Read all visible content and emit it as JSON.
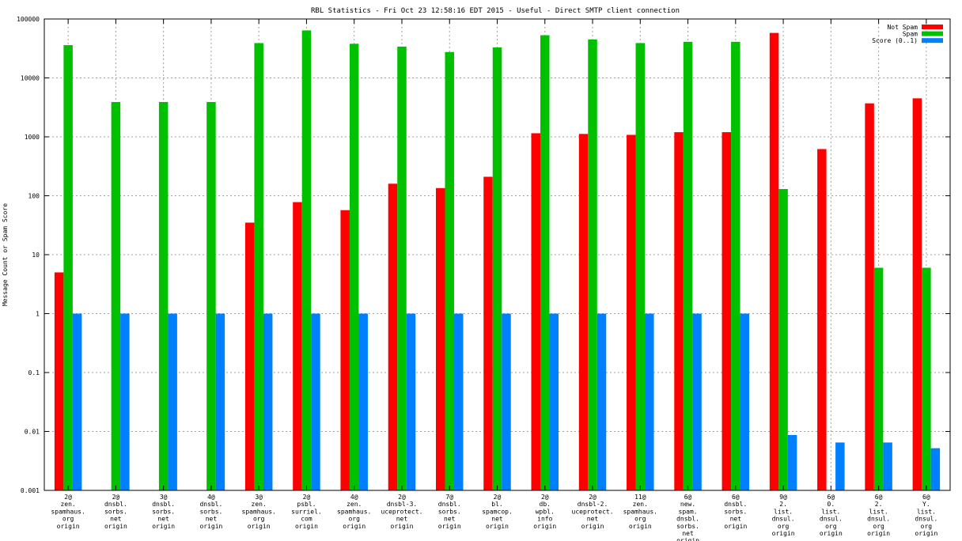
{
  "chart_data": {
    "type": "bar",
    "title": "RBL Statistics - Fri Oct 23 12:58:16 EDT 2015 - Useful - Direct SMTP client connection",
    "xlabel": "",
    "ylabel": "Message Count or Spam Score",
    "yscale": "log",
    "ylim": [
      0.001,
      100000
    ],
    "yticks": [
      "0.001",
      "0.01",
      "0.1",
      "1",
      "10",
      "100",
      "1000",
      "10000",
      "100000"
    ],
    "grid": true,
    "legend_position": "top-right",
    "categories": [
      [
        "2@",
        "zen.",
        "spamhaus.",
        "org",
        "origin"
      ],
      [
        "2@",
        "dnsbl.",
        "sorbs.",
        "net",
        "origin"
      ],
      [
        "3@",
        "dnsbl.",
        "sorbs.",
        "net",
        "origin"
      ],
      [
        "4@",
        "dnsbl.",
        "sorbs.",
        "net",
        "origin"
      ],
      [
        "3@",
        "zen.",
        "spamhaus.",
        "org",
        "origin"
      ],
      [
        "2@",
        "psbl.",
        "surriel.",
        "com",
        "origin"
      ],
      [
        "4@",
        "zen.",
        "spamhaus.",
        "org",
        "origin"
      ],
      [
        "2@",
        "dnsbl-3.",
        "uceprotect.",
        "net",
        "origin"
      ],
      [
        "7@",
        "dnsbl.",
        "sorbs.",
        "net",
        "origin"
      ],
      [
        "2@",
        "bl.",
        "spamcop.",
        "net",
        "origin"
      ],
      [
        "2@",
        "db.",
        "wpbl.",
        "info",
        "origin"
      ],
      [
        "2@",
        "dnsbl-2.",
        "uceprotect.",
        "net",
        "origin"
      ],
      [
        "11@",
        "zen.",
        "spamhaus.",
        "org",
        "origin"
      ],
      [
        "6@",
        "new.",
        "spam.",
        "dnsbl.",
        "sorbs.",
        "net",
        "origin"
      ],
      [
        "6@",
        "dnsbl.",
        "sorbs.",
        "net",
        "origin"
      ],
      [
        "9@",
        "2.",
        "list.",
        "dnsul.",
        "org",
        "origin"
      ],
      [
        "6@",
        "0.",
        "list.",
        "dnsul.",
        "org",
        "origin"
      ],
      [
        "6@",
        "2.",
        "list.",
        "dnsul.",
        "org",
        "origin"
      ],
      [
        "6@",
        "Y.",
        "list.",
        "dnsul.",
        "org",
        "origin"
      ]
    ],
    "series": [
      {
        "name": "Not Spam",
        "color": "#ff0000",
        "values": [
          5,
          null,
          null,
          null,
          35,
          78,
          57,
          160,
          135,
          210,
          1150,
          1120,
          1080,
          1200,
          1200,
          58000,
          620,
          3700,
          4500
        ]
      },
      {
        "name": "Spam",
        "color": "#00c000",
        "values": [
          36000,
          3900,
          3900,
          3900,
          39000,
          64000,
          38000,
          34000,
          27500,
          33000,
          53000,
          45000,
          39000,
          41000,
          41000,
          130,
          0.001,
          6,
          6
        ]
      },
      {
        "name": "Score (0..1)",
        "color": "#0080ff",
        "values": [
          1,
          1,
          1,
          1,
          1,
          1,
          1,
          1,
          1,
          1,
          1,
          1,
          1,
          1,
          1,
          0.0087,
          0.0065,
          0.0065,
          0.0052
        ]
      }
    ]
  }
}
